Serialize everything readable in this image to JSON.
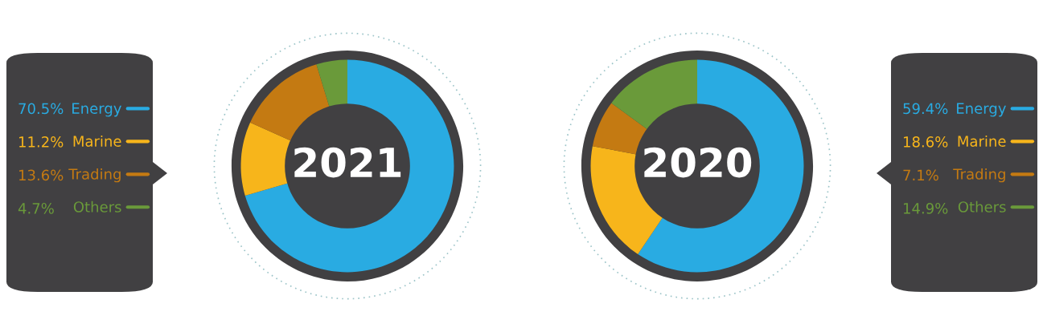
{
  "chart_data": [
    {
      "type": "donut",
      "title": "2021",
      "categories": [
        "Energy",
        "Marine",
        "Trading",
        "Others"
      ],
      "values": [
        70.5,
        11.2,
        13.6,
        4.7
      ],
      "colors": [
        "#29abe2",
        "#f7b51b",
        "#c47a12",
        "#6a9a3a"
      ],
      "legend": "left",
      "value_labels": [
        "70.5%",
        "11.2%",
        "13.6%",
        "4.7%"
      ]
    },
    {
      "type": "donut",
      "title": "2020",
      "categories": [
        "Energy",
        "Marine",
        "Trading",
        "Others"
      ],
      "values": [
        59.4,
        18.6,
        7.1,
        14.9
      ],
      "colors": [
        "#29abe2",
        "#f7b51b",
        "#c47a12",
        "#6a9a3a"
      ],
      "legend": "right",
      "value_labels": [
        "59.4%",
        "18.6%",
        "7.1%",
        "14.9%"
      ]
    }
  ]
}
